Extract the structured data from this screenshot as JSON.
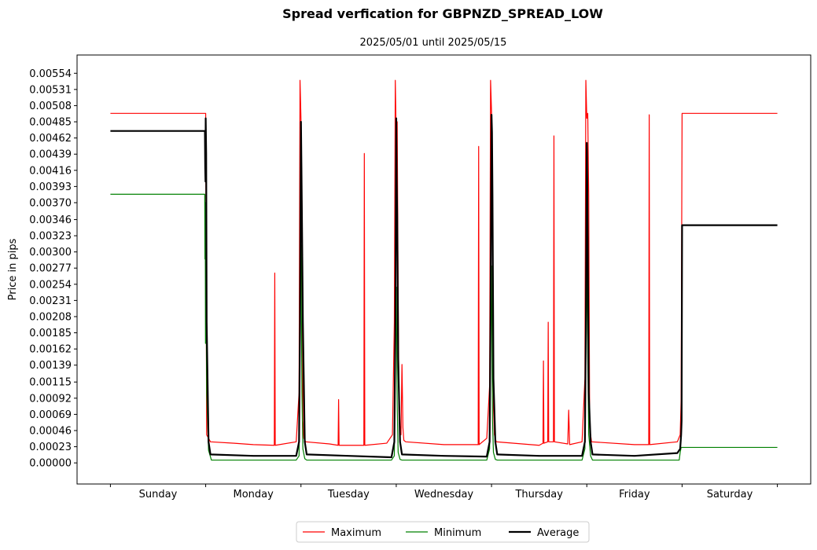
{
  "chart_data": {
    "type": "line",
    "title": "Spread verfication for GBPNZD_SPREAD_LOW",
    "subtitle": "2025/05/01 until 2025/05/15",
    "xlabel": "",
    "ylabel": "Price in pips",
    "ylim": [
      -0.0003,
      0.0058
    ],
    "xlim": [
      -0.35,
      7.35
    ],
    "y_ticks": [
      "0.00000",
      "0.00023",
      "0.00046",
      "0.00069",
      "0.00092",
      "0.00115",
      "0.00139",
      "0.00162",
      "0.00185",
      "0.00208",
      "0.00231",
      "0.00254",
      "0.00277",
      "0.00300",
      "0.00323",
      "0.00346",
      "0.00370",
      "0.00393",
      "0.00416",
      "0.00439",
      "0.00462",
      "0.00485",
      "0.00508",
      "0.00531",
      "0.00554"
    ],
    "categories": [
      "Sunday",
      "Monday",
      "Tuesday",
      "Wednesday",
      "Thursday",
      "Friday",
      "Saturday"
    ],
    "category_bounds": [
      0,
      1,
      2,
      3,
      4,
      5,
      6,
      7
    ],
    "grid": false,
    "legend_position": "bottom-center",
    "colors": {
      "maximum": "#ff0000",
      "minimum": "#008000",
      "average": "#000000"
    },
    "series": [
      {
        "name": "Maximum",
        "x": [
          0.0,
          0.99,
          1.0,
          1.01,
          1.05,
          1.3,
          1.5,
          1.72,
          1.725,
          1.73,
          1.95,
          1.98,
          1.99,
          2.0,
          2.01,
          2.02,
          2.03,
          2.05,
          2.3,
          2.39,
          2.395,
          2.4,
          2.66,
          2.665,
          2.67,
          2.9,
          2.96,
          2.98,
          2.99,
          3.0,
          3.01,
          3.02,
          3.03,
          3.05,
          3.06,
          3.07,
          3.08,
          3.1,
          3.5,
          3.86,
          3.865,
          3.87,
          3.95,
          3.98,
          3.99,
          4.0,
          4.01,
          4.02,
          4.03,
          4.05,
          4.5,
          4.54,
          4.545,
          4.55,
          4.59,
          4.595,
          4.6,
          4.65,
          4.655,
          4.66,
          4.8,
          4.81,
          4.82,
          4.95,
          4.98,
          4.99,
          5.0,
          5.01,
          5.02,
          5.03,
          5.05,
          5.5,
          5.65,
          5.655,
          5.66,
          5.95,
          5.98,
          5.99,
          6.0,
          7.0
        ],
        "y": [
          0.00497,
          0.00497,
          0.00497,
          0.0004,
          0.0003,
          0.00028,
          0.00026,
          0.00025,
          0.0027,
          0.00025,
          0.0003,
          0.001,
          0.00544,
          0.0049,
          0.0037,
          0.0006,
          0.00035,
          0.0003,
          0.00027,
          0.00025,
          0.0009,
          0.00025,
          0.00025,
          0.0044,
          0.00025,
          0.00028,
          0.0004,
          0.002,
          0.00544,
          0.0046,
          0.00485,
          0.0025,
          0.0006,
          0.0004,
          0.0014,
          0.0005,
          0.00032,
          0.0003,
          0.00026,
          0.00026,
          0.0045,
          0.00026,
          0.00035,
          0.0011,
          0.00544,
          0.005,
          0.0038,
          0.0008,
          0.0004,
          0.0003,
          0.00025,
          0.00028,
          0.00145,
          0.00028,
          0.0003,
          0.002,
          0.0003,
          0.0003,
          0.00465,
          0.0003,
          0.00027,
          0.00075,
          0.00026,
          0.0003,
          0.0012,
          0.00544,
          0.0049,
          0.00497,
          0.0038,
          0.0005,
          0.0003,
          0.00026,
          0.00026,
          0.00495,
          0.00026,
          0.0003,
          0.0004,
          0.0009,
          0.00497,
          0.00497
        ]
      },
      {
        "name": "Minimum",
        "x": [
          0.0,
          0.99,
          0.992,
          0.995,
          0.998,
          1.0,
          1.01,
          1.03,
          1.06,
          1.95,
          1.98,
          1.99,
          2.0,
          2.01,
          2.02,
          2.04,
          2.06,
          2.95,
          2.98,
          2.99,
          3.0,
          3.01,
          3.02,
          3.04,
          3.06,
          3.95,
          3.98,
          3.99,
          4.0,
          4.01,
          4.02,
          4.04,
          4.06,
          4.95,
          4.98,
          4.99,
          5.0,
          5.01,
          5.02,
          5.04,
          5.06,
          5.97,
          5.98,
          5.99,
          6.0,
          7.0
        ],
        "y": [
          0.00382,
          0.00382,
          0.0029,
          0.0037,
          0.0017,
          0.0036,
          0.001,
          0.00018,
          4e-05,
          4e-05,
          0.0001,
          0.002,
          0.0031,
          0.001,
          0.0002,
          6e-05,
          4e-05,
          4e-05,
          0.0001,
          0.0018,
          0.0025,
          0.0008,
          0.00015,
          5e-05,
          4e-05,
          4e-05,
          0.0002,
          0.0019,
          0.0028,
          0.0006,
          0.00015,
          5e-05,
          4e-05,
          4e-05,
          0.0002,
          0.0016,
          0.0029,
          0.0015,
          0.0004,
          0.0001,
          4e-05,
          4e-05,
          0.00015,
          0.00022,
          0.00022,
          0.00022
        ]
      },
      {
        "name": "Average",
        "x": [
          0.0,
          0.99,
          0.992,
          0.995,
          0.998,
          1.0,
          1.005,
          1.01,
          1.03,
          1.05,
          1.5,
          1.95,
          1.98,
          1.99,
          2.0,
          2.005,
          2.01,
          2.02,
          2.04,
          2.06,
          2.5,
          2.95,
          2.98,
          2.99,
          3.0,
          3.005,
          3.01,
          3.02,
          3.04,
          3.06,
          3.5,
          3.95,
          3.98,
          3.99,
          4.0,
          4.005,
          4.01,
          4.02,
          4.04,
          4.06,
          4.5,
          4.95,
          4.98,
          4.99,
          5.0,
          5.005,
          5.01,
          5.02,
          5.04,
          5.06,
          5.5,
          5.95,
          5.98,
          5.99,
          5.995,
          6.0,
          7.0
        ],
        "y": [
          0.00472,
          0.00472,
          0.00472,
          0.0042,
          0.004,
          0.0049,
          0.0044,
          0.002,
          0.0003,
          0.00012,
          0.0001,
          0.0001,
          0.0003,
          0.002,
          0.00485,
          0.0042,
          0.0035,
          0.002,
          0.0003,
          0.00012,
          0.0001,
          8e-05,
          0.0003,
          0.0018,
          0.0049,
          0.004,
          0.0035,
          0.0015,
          0.0003,
          0.00012,
          0.0001,
          9e-05,
          0.0003,
          0.0021,
          0.00495,
          0.0047,
          0.0038,
          0.0012,
          0.0003,
          0.00012,
          0.0001,
          0.0001,
          0.0003,
          0.0019,
          0.00455,
          0.004,
          0.0031,
          0.001,
          0.0003,
          0.00012,
          0.0001,
          0.00014,
          0.0002,
          0.0004,
          0.0006,
          0.00338,
          0.00338
        ]
      }
    ]
  }
}
